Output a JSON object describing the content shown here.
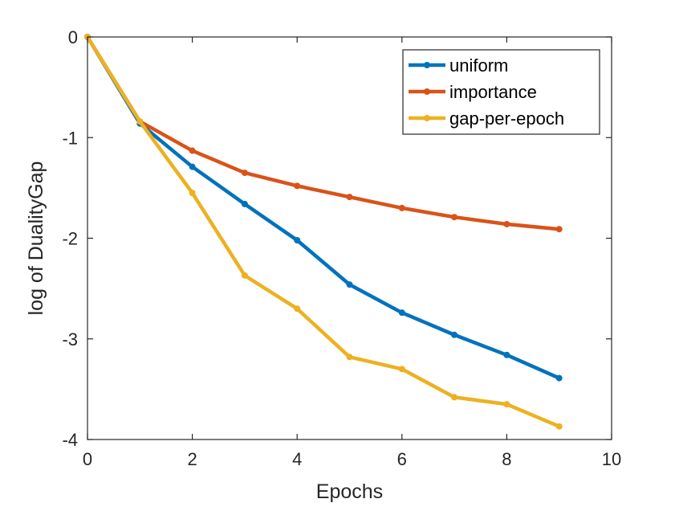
{
  "chart_data": {
    "type": "line",
    "title": "",
    "xlabel": "Epochs",
    "ylabel": "log of DualityGap",
    "xlim": [
      0,
      10
    ],
    "ylim": [
      -4,
      0
    ],
    "xticks": [
      0,
      2,
      4,
      6,
      8,
      10
    ],
    "yticks": [
      0,
      -1,
      -2,
      -3,
      -4
    ],
    "xtick_labels": [
      "0",
      "2",
      "4",
      "6",
      "8",
      "10"
    ],
    "ytick_labels": [
      "0",
      "-1",
      "-2",
      "-3",
      "-4"
    ],
    "grid": false,
    "legend_position": "top-right",
    "x": [
      0,
      1,
      2,
      3,
      4,
      5,
      6,
      7,
      8,
      9
    ],
    "series": [
      {
        "name": "uniform",
        "color": "#0072BD",
        "values": [
          0,
          -0.86,
          -1.29,
          -1.66,
          -2.02,
          -2.46,
          -2.74,
          -2.96,
          -3.16,
          -3.39
        ]
      },
      {
        "name": "importance",
        "color": "#D95319",
        "values": [
          0,
          -0.84,
          -1.13,
          -1.35,
          -1.48,
          -1.59,
          -1.7,
          -1.79,
          -1.86,
          -1.91
        ]
      },
      {
        "name": "gap-per-epoch",
        "color": "#EDB120",
        "values": [
          0,
          -0.84,
          -1.55,
          -2.37,
          -2.7,
          -3.18,
          -3.3,
          -3.58,
          -3.65,
          -3.87
        ]
      }
    ]
  }
}
